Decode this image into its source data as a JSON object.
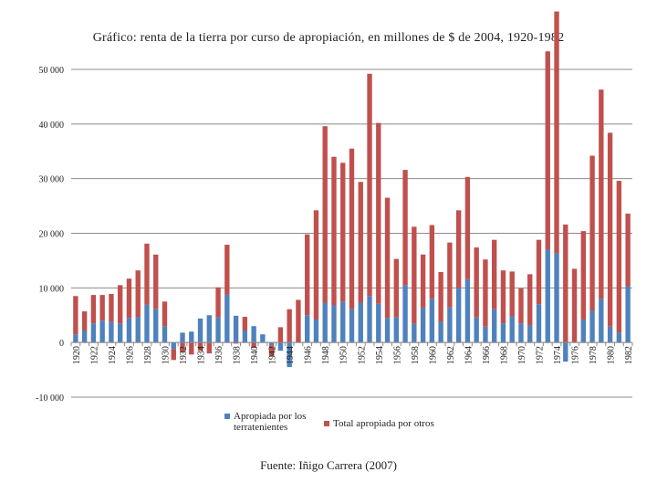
{
  "chart_data": {
    "type": "bar",
    "title": "Gráfico: renta de la tierra por curso de apropiación, en millones de $ de 2004, 1920-1982",
    "xlabel": "",
    "ylabel": "",
    "ylim": [
      -10000,
      50000
    ],
    "y_ticks": [
      -10000,
      0,
      10000,
      20000,
      30000,
      40000,
      50000
    ],
    "y_tick_labels": [
      "-10 000",
      "0",
      "10 000",
      "20 000",
      "30 000",
      "40 000",
      "50 000"
    ],
    "categories": [
      "1920",
      "1921",
      "1922",
      "1923",
      "1924",
      "1925",
      "1926",
      "1927",
      "1928",
      "1929",
      "1930",
      "1931",
      "1932",
      "1933",
      "1934",
      "1935",
      "1936",
      "1937",
      "1938",
      "1939",
      "1940",
      "1941",
      "1942",
      "1943",
      "1944",
      "1945",
      "1946",
      "1947",
      "1948",
      "1949",
      "1950",
      "1951",
      "1952",
      "1953",
      "1954",
      "1955",
      "1956",
      "1957",
      "1958",
      "1959",
      "1960",
      "1961",
      "1962",
      "1963",
      "1964",
      "1965",
      "1966",
      "1967",
      "1968",
      "1969",
      "1970",
      "1971",
      "1972",
      "1973",
      "1974",
      "1975",
      "1976",
      "1977",
      "1978",
      "1979",
      "1980",
      "1981",
      "1982"
    ],
    "x_tick_labels": [
      "1920",
      "1922",
      "1924",
      "1926",
      "1928",
      "1930",
      "1932",
      "1934",
      "1936",
      "1938",
      "1940",
      "1942",
      "1944",
      "1946",
      "1948",
      "1950",
      "1952",
      "1954",
      "1956",
      "1958",
      "1960",
      "1962",
      "1964",
      "1966",
      "1968",
      "1970",
      "1972",
      "1974",
      "1976",
      "1978",
      "1980",
      "1982"
    ],
    "series": [
      {
        "name": "Apropiada por los terratenientes",
        "color": "#4f81bd",
        "values": [
          1500,
          2200,
          3500,
          4000,
          3800,
          3500,
          4500,
          4700,
          6900,
          6100,
          3000,
          -1200,
          1800,
          2000,
          4400,
          5000,
          4600,
          8800,
          4900,
          2200,
          3000,
          1500,
          -500,
          -1500,
          -4500,
          0,
          5000,
          4200,
          7300,
          6800,
          7500,
          6100,
          7300,
          8500,
          7100,
          4500,
          4600,
          10500,
          3400,
          6400,
          8000,
          3800,
          6400,
          10000,
          11600,
          4600,
          2900,
          6100,
          3500,
          4800,
          3500,
          3200,
          7000,
          17000,
          16300,
          -3500,
          0,
          4200,
          5800,
          8000,
          2900,
          1800,
          10300
        ]
      },
      {
        "name": "Total apropiada por otros",
        "color": "#c0504d",
        "values": [
          7000,
          3500,
          5200,
          4700,
          5100,
          7000,
          7200,
          8500,
          11200,
          10000,
          4500,
          -2000,
          -1800,
          -2200,
          -1500,
          -2000,
          5500,
          9100,
          -200,
          2500,
          -1000,
          0,
          -2000,
          2800,
          6100,
          7800,
          14800,
          20000,
          32300,
          27200,
          25400,
          29400,
          22100,
          40700,
          33100,
          22000,
          10700,
          21100,
          17800,
          9700,
          13500,
          9100,
          11900,
          14200,
          18700,
          12800,
          12300,
          12700,
          9700,
          8200,
          6400,
          9300,
          11800,
          36300,
          44300,
          21600,
          13500,
          16200,
          28400,
          38300,
          35500,
          27800,
          13300
        ]
      }
    ]
  },
  "legend": {
    "items": [
      {
        "label": "Apropiada por los terratenientes",
        "color": "#4f81bd"
      },
      {
        "label": "Total apropiada por otros",
        "color": "#c0504d"
      }
    ]
  },
  "source": "Fuente: Iñigo Carrera (2007)"
}
